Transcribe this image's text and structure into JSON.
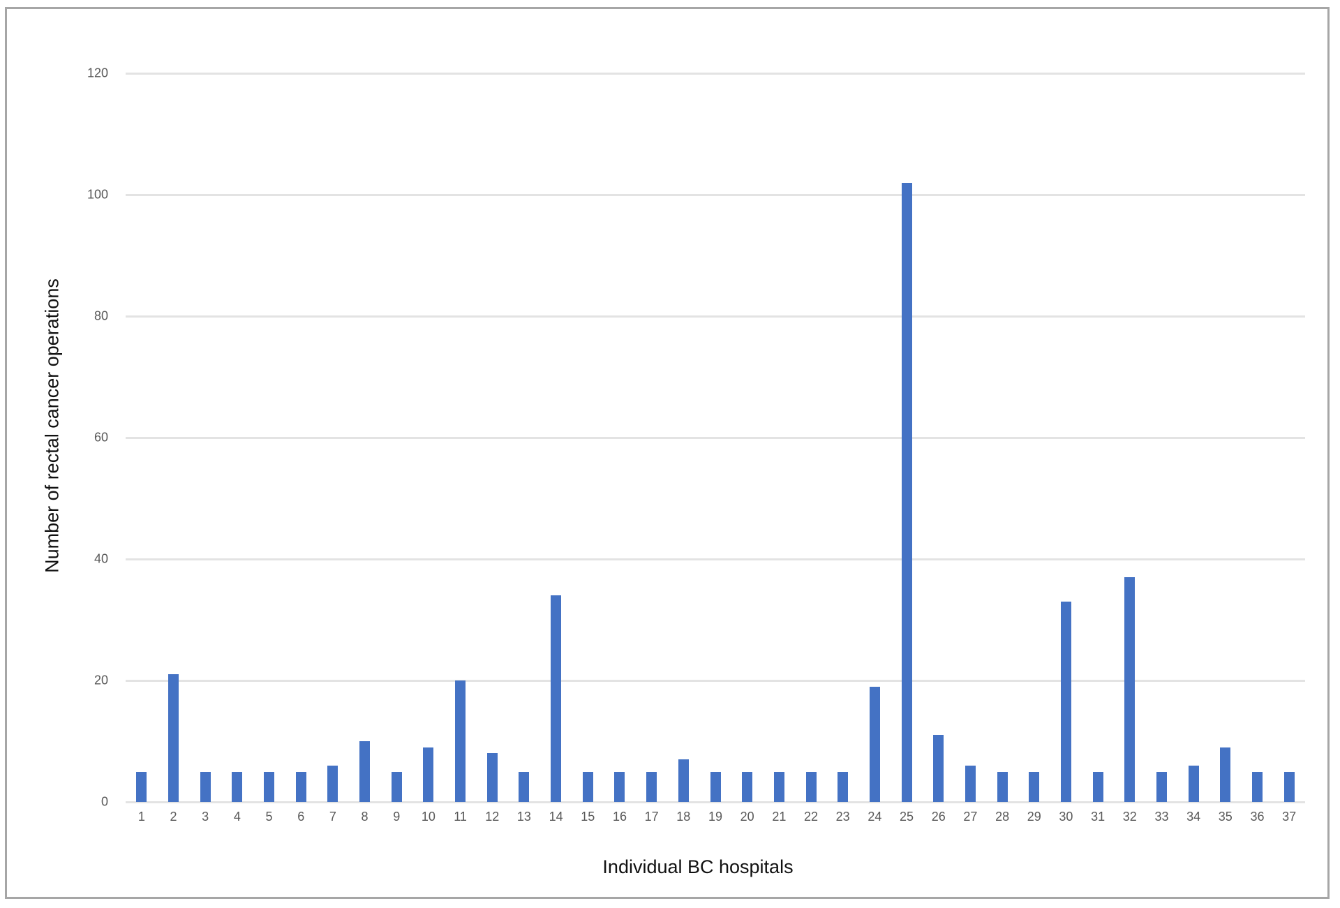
{
  "chart_data": {
    "type": "bar",
    "title": "",
    "xlabel": "Individual BC hospitals",
    "ylabel": "Number of rectal cancer operations",
    "ylim": [
      0,
      120
    ],
    "yticks": [
      0,
      20,
      40,
      60,
      80,
      100,
      120
    ],
    "grid": true,
    "legend": null,
    "bar_color": "#4472c4",
    "categories": [
      "1",
      "2",
      "3",
      "4",
      "5",
      "6",
      "7",
      "8",
      "9",
      "10",
      "11",
      "12",
      "13",
      "14",
      "15",
      "16",
      "17",
      "18",
      "19",
      "20",
      "21",
      "22",
      "23",
      "24",
      "25",
      "26",
      "27",
      "28",
      "29",
      "30",
      "31",
      "32",
      "33",
      "34",
      "35",
      "36",
      "37"
    ],
    "values": [
      5,
      21,
      5,
      5,
      5,
      5,
      6,
      10,
      5,
      9,
      20,
      8,
      5,
      34,
      5,
      5,
      5,
      7,
      5,
      5,
      5,
      5,
      5,
      19,
      102,
      11,
      6,
      5,
      5,
      33,
      5,
      37,
      5,
      6,
      9,
      5,
      5
    ]
  }
}
